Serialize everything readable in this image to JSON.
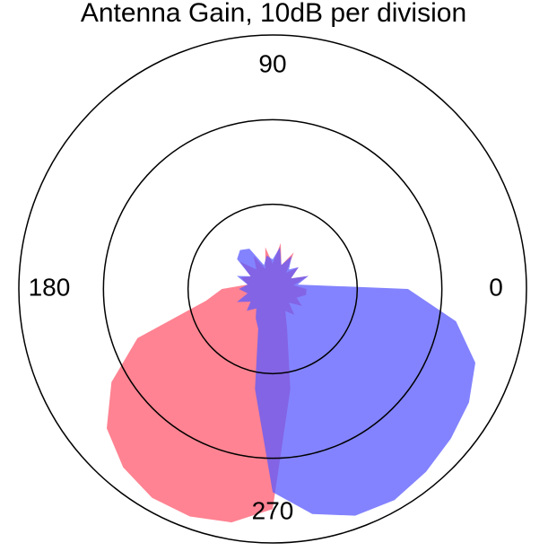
{
  "chart_data": {
    "type": "polar",
    "title": "Antenna Gain, 10dB per division",
    "theta": [
      0,
      10,
      20,
      30,
      40,
      50,
      60,
      70,
      80,
      90,
      100,
      110,
      120,
      130,
      140,
      150,
      160,
      170,
      180,
      190,
      200,
      210,
      220,
      230,
      240,
      250,
      260,
      270,
      280,
      290,
      300,
      310,
      320,
      330,
      340,
      350
    ],
    "series": [
      {
        "color": "#ff5a6e",
        "values": [
          4,
          2.5,
          4.5,
          2.5,
          4,
          2.5,
          5,
          3,
          5.5,
          3,
          5,
          2.5,
          4.5,
          3,
          5,
          3,
          4,
          3,
          6,
          8,
          17,
          22,
          25.6,
          27.5,
          28.5,
          28.6,
          28,
          26,
          12,
          5,
          3,
          4,
          2.5,
          4,
          3,
          4
        ]
      },
      {
        "color": "#5a5aff",
        "values": [
          16,
          3,
          4.5,
          2.5,
          4,
          3,
          4.5,
          3,
          5,
          3.5,
          4,
          3,
          5.5,
          6,
          5.5,
          3,
          4.5,
          3,
          4,
          3,
          4.5,
          3,
          4,
          3,
          4,
          5,
          12,
          24,
          27,
          28.5,
          28.8,
          28.2,
          27.5,
          26.8,
          25.5,
          22
        ]
      }
    ],
    "rlim": [
      0,
      30
    ],
    "rticks": [
      10,
      20,
      30
    ],
    "thetaticks": [
      0,
      90,
      180,
      270
    ]
  }
}
